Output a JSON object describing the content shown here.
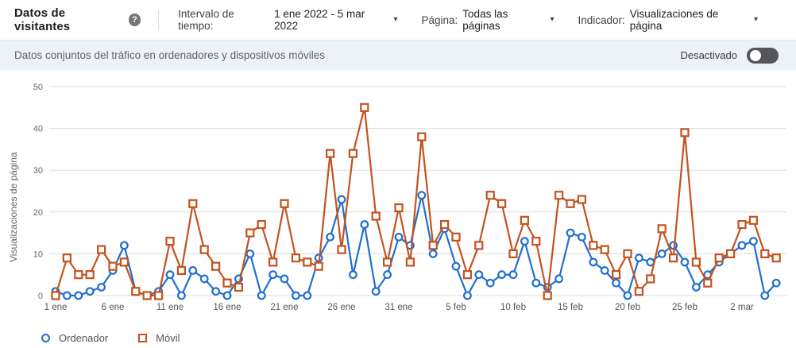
{
  "header": {
    "title": "Datos de visitantes",
    "help_icon_glyph": "?",
    "caret_glyph": "▾",
    "filters": [
      {
        "label": "Intervalo de tiempo:",
        "value": "1 ene 2022 - 5 mar 2022"
      },
      {
        "label": "Página:",
        "value": "Todas las páginas"
      },
      {
        "label": "Indicador:",
        "value": "Visualizaciones de página"
      }
    ]
  },
  "toggle_bar": {
    "text": "Datos conjuntos del tráfico en ordenadores y dispositivos móviles",
    "state_label": "Desactivado",
    "enabled": false
  },
  "chart_data": {
    "type": "line",
    "title": "",
    "xlabel": "",
    "ylabel": "Visualizaciones de página",
    "ylim": [
      0,
      50
    ],
    "yticks": [
      0,
      10,
      20,
      30,
      40,
      50
    ],
    "grid": true,
    "legend_position": "bottom-left",
    "x_count": 64,
    "x_start": "1 ene 2022",
    "x_end": "5 mar 2022",
    "x_tick_labels": [
      "1 ene",
      "6 ene",
      "11 ene",
      "16 ene",
      "21 ene",
      "26 ene",
      "31 ene",
      "5 feb",
      "10 feb",
      "15 feb",
      "20 feb",
      "25 feb",
      "2 mar"
    ],
    "x_tick_positions": [
      0,
      5,
      10,
      15,
      20,
      25,
      30,
      35,
      40,
      45,
      50,
      55,
      60
    ],
    "series": [
      {
        "name": "Ordenador",
        "color": "#1f6fd0",
        "marker": "circle",
        "values": [
          1,
          0,
          0,
          1,
          2,
          6,
          12,
          1,
          0,
          1,
          5,
          0,
          6,
          4,
          1,
          0,
          4,
          10,
          0,
          5,
          4,
          0,
          0,
          9,
          14,
          23,
          5,
          17,
          1,
          5,
          14,
          12,
          24,
          10,
          16,
          7,
          0,
          5,
          3,
          5,
          5,
          13,
          3,
          2,
          4,
          15,
          14,
          8,
          6,
          3,
          0,
          9,
          8,
          10,
          12,
          8,
          2,
          5,
          8,
          10,
          12,
          13,
          0,
          3
        ]
      },
      {
        "name": "Móvil",
        "color": "#c4521e",
        "marker": "square",
        "values": [
          0,
          9,
          5,
          5,
          11,
          7,
          8,
          1,
          0,
          0,
          13,
          6,
          22,
          11,
          7,
          3,
          2,
          15,
          17,
          8,
          22,
          9,
          8,
          7,
          34,
          11,
          34,
          45,
          19,
          8,
          21,
          8,
          38,
          12,
          17,
          14,
          5,
          12,
          24,
          22,
          10,
          18,
          13,
          0,
          24,
          22,
          23,
          12,
          11,
          5,
          10,
          1,
          4,
          16,
          9,
          39,
          8,
          3,
          9,
          10,
          17,
          18,
          10,
          9
        ]
      }
    ]
  },
  "colors": {
    "ordenador_blue": "#1f6fd0",
    "movil_orange": "#c4521e",
    "gridline": "#dcdcdc",
    "toggle_bar_bg": "#edf2f8",
    "toggle_pill": "#55565a",
    "axis_text": "#666666"
  }
}
